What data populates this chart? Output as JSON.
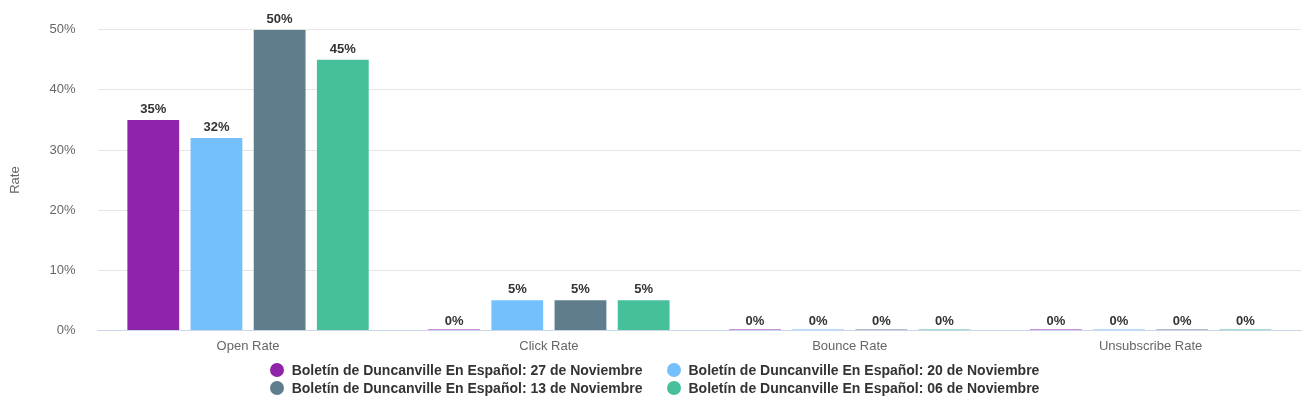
{
  "chart_data": {
    "type": "bar",
    "ylabel": "Rate",
    "categories": [
      "Open Rate",
      "Click Rate",
      "Bounce Rate",
      "Unsubscribe Rate"
    ],
    "ylim": [
      0,
      50
    ],
    "yticks": [
      {
        "value": 0,
        "label": "0%"
      },
      {
        "value": 10,
        "label": "10%"
      },
      {
        "value": 20,
        "label": "20%"
      },
      {
        "value": 30,
        "label": "30%"
      },
      {
        "value": 40,
        "label": "40%"
      },
      {
        "value": 50,
        "label": "50%"
      }
    ],
    "grid": "y",
    "legend": "bottom",
    "series": [
      {
        "name": "Boletín de Duncanville En Español: 27 de Noviembre",
        "color": "#8e24aa",
        "values": [
          35,
          0,
          0,
          0
        ],
        "value_labels": [
          "35%",
          "0%",
          "0%",
          "0%"
        ]
      },
      {
        "name": "Boletín de Duncanville En Español: 20 de Noviembre",
        "color": "#74c0fc",
        "values": [
          32,
          5,
          0,
          0
        ],
        "value_labels": [
          "32%",
          "5%",
          "0%",
          "0%"
        ]
      },
      {
        "name": "Boletín de Duncanville En Español: 13 de Noviembre",
        "color": "#5f7d8c",
        "values": [
          50,
          5,
          0,
          0
        ],
        "value_labels": [
          "50%",
          "5%",
          "0%",
          "0%"
        ]
      },
      {
        "name": "Boletín de Duncanville En Español: 06 de Noviembre",
        "color": "#45c09a",
        "values": [
          45,
          5,
          0,
          0
        ],
        "value_labels": [
          "45%",
          "5%",
          "0%",
          "0%"
        ]
      }
    ]
  }
}
